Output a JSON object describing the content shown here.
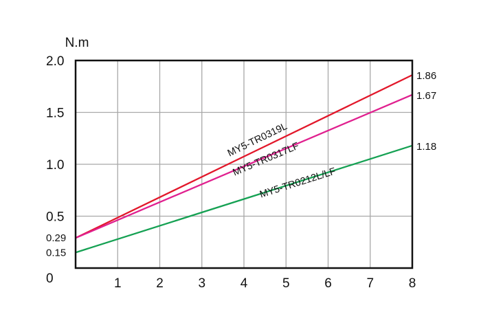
{
  "chart_data": {
    "type": "line",
    "ylabel": "N.m",
    "xlim": [
      0,
      8
    ],
    "ylim": [
      0,
      2.0
    ],
    "grid": true,
    "x_ticks": [
      "1",
      "2",
      "3",
      "4",
      "5",
      "6",
      "7",
      "8"
    ],
    "y_ticks": [
      "0.5",
      "1.0",
      "1.5",
      "2.0"
    ],
    "origin_label": "0",
    "extra_y_labels": [
      "0.29",
      "0.15"
    ],
    "series": [
      {
        "name": "MY5-TR0319L",
        "color": "#e2172a",
        "x": [
          0,
          8
        ],
        "y": [
          0.29,
          1.86
        ],
        "end_label": "1.86"
      },
      {
        "name": "MY5-TR0317LF",
        "color": "#e0208f",
        "x": [
          0,
          8
        ],
        "y": [
          0.29,
          1.67
        ],
        "end_label": "1.67"
      },
      {
        "name": "MY5-TR0212L/LF",
        "color": "#15a153",
        "x": [
          0,
          8
        ],
        "y": [
          0.15,
          1.18
        ],
        "end_label": "1.18"
      }
    ]
  }
}
